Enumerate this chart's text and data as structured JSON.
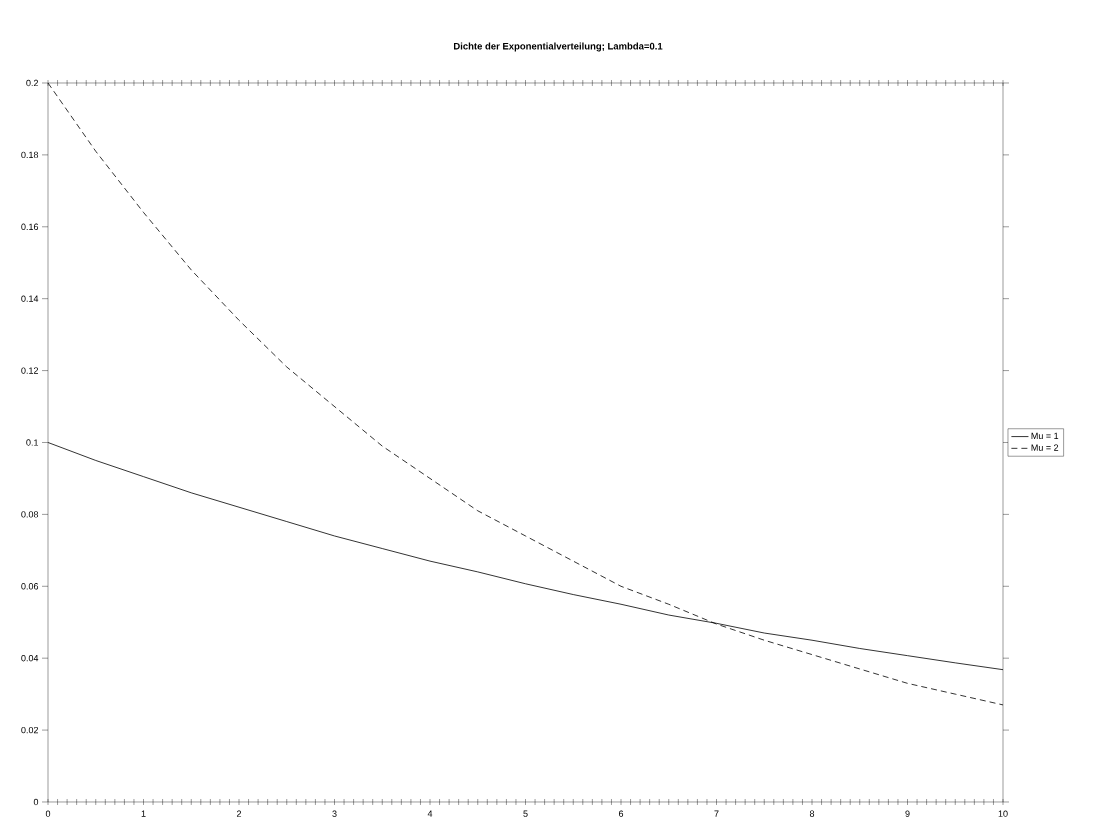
{
  "chart_data": {
    "type": "line",
    "title": "Dichte der Exponentialverteilung; Lambda=0.1",
    "x": [
      0,
      0.5,
      1,
      1.5,
      2,
      2.5,
      3,
      3.5,
      4,
      4.5,
      5,
      5.5,
      6,
      6.5,
      7,
      7.5,
      8,
      8.5,
      9,
      9.5,
      10
    ],
    "series": [
      {
        "name": "Mu = 1",
        "color": "#000000",
        "line_style": "solid",
        "values": [
          0.1,
          0.095,
          0.0905,
          0.086,
          0.082,
          0.078,
          0.074,
          0.0705,
          0.067,
          0.064,
          0.0607,
          0.0577,
          0.055,
          0.052,
          0.0497,
          0.047,
          0.045,
          0.0427,
          0.0407,
          0.0387,
          0.0368
        ]
      },
      {
        "name": "Mu = 2",
        "color": "#000000",
        "line_style": "dashed",
        "values": [
          0.2,
          0.181,
          0.164,
          0.148,
          0.134,
          0.121,
          0.11,
          0.099,
          0.09,
          0.081,
          0.074,
          0.067,
          0.06,
          0.055,
          0.0495,
          0.045,
          0.041,
          0.037,
          0.033,
          0.03,
          0.027
        ]
      }
    ],
    "xlim": [
      0,
      10
    ],
    "ylim": [
      0,
      0.2
    ],
    "xticks": [
      0,
      {
        "value": 0.1,
        "label": null
      },
      {
        "value": 0.2,
        "label": null
      },
      {
        "value": 0.3,
        "label": null
      },
      {
        "value": 0.4,
        "label": null
      },
      {
        "value": 0.5,
        "label": null
      },
      {
        "value": 0.6,
        "label": null
      },
      {
        "value": 0.7,
        "label": null
      },
      {
        "value": 0.8,
        "label": null
      },
      {
        "value": 0.9,
        "label": null
      },
      1,
      {
        "value": 1.1,
        "label": null
      },
      {
        "value": 1.2,
        "label": null
      },
      {
        "value": 1.3,
        "label": null
      },
      {
        "value": 1.4,
        "label": null
      },
      {
        "value": 1.5,
        "label": null
      },
      {
        "value": 1.6,
        "label": null
      },
      {
        "value": 1.7,
        "label": null
      },
      {
        "value": 1.8,
        "label": null
      },
      {
        "value": 1.9,
        "label": null
      },
      2,
      {
        "value": 2.1,
        "label": null
      },
      {
        "value": 2.2,
        "label": null
      },
      {
        "value": 2.3,
        "label": null
      },
      {
        "value": 2.4,
        "label": null
      },
      {
        "value": 2.5,
        "label": null
      },
      {
        "value": 2.6,
        "label": null
      },
      {
        "value": 2.7,
        "label": null
      },
      {
        "value": 2.8,
        "label": null
      },
      {
        "value": 2.9,
        "label": null
      },
      3,
      {
        "value": 3.1,
        "label": null
      },
      {
        "value": 3.2,
        "label": null
      },
      {
        "value": 3.3,
        "label": null
      },
      {
        "value": 3.4,
        "label": null
      },
      {
        "value": 3.5,
        "label": null
      },
      {
        "value": 3.6,
        "label": null
      },
      {
        "value": 3.7,
        "label": null
      },
      {
        "value": 3.8,
        "label": null
      },
      {
        "value": 3.9,
        "label": null
      },
      4,
      {
        "value": 4.1,
        "label": null
      },
      {
        "value": 4.2,
        "label": null
      },
      {
        "value": 4.3,
        "label": null
      },
      {
        "value": 4.4,
        "label": null
      },
      {
        "value": 4.5,
        "label": null
      },
      {
        "value": 4.6,
        "label": null
      },
      {
        "value": 4.7,
        "label": null
      },
      {
        "value": 4.8,
        "label": null
      },
      {
        "value": 4.9,
        "label": null
      },
      5,
      {
        "value": 5.1,
        "label": null
      },
      {
        "value": 5.2,
        "label": null
      },
      {
        "value": 5.3,
        "label": null
      },
      {
        "value": 5.4,
        "label": null
      },
      {
        "value": 5.5,
        "label": null
      },
      {
        "value": 5.6,
        "label": null
      },
      {
        "value": 5.7,
        "label": null
      },
      {
        "value": 5.8,
        "label": null
      },
      {
        "value": 5.9,
        "label": null
      },
      6,
      {
        "value": 6.1,
        "label": null
      },
      {
        "value": 6.2,
        "label": null
      },
      {
        "value": 6.3,
        "label": null
      },
      {
        "value": 6.4,
        "label": null
      },
      {
        "value": 6.5,
        "label": null
      },
      {
        "value": 6.6,
        "label": null
      },
      {
        "value": 6.7,
        "label": null
      },
      {
        "value": 6.8,
        "label": null
      },
      {
        "value": 6.9,
        "label": null
      },
      7,
      {
        "value": 7.1,
        "label": null
      },
      {
        "value": 7.2,
        "label": null
      },
      {
        "value": 7.3,
        "label": null
      },
      {
        "value": 7.4,
        "label": null
      },
      {
        "value": 7.5,
        "label": null
      },
      {
        "value": 7.6,
        "label": null
      },
      {
        "value": 7.7,
        "label": null
      },
      {
        "value": 7.8,
        "label": null
      },
      {
        "value": 7.9,
        "label": null
      },
      8,
      {
        "value": 8.1,
        "label": null
      },
      {
        "value": 8.2,
        "label": null
      },
      {
        "value": 8.3,
        "label": null
      },
      {
        "value": 8.4,
        "label": null
      },
      {
        "value": 8.5,
        "label": null
      },
      {
        "value": 8.6,
        "label": null
      },
      {
        "value": 8.7,
        "label": null
      },
      {
        "value": 8.8,
        "label": null
      },
      {
        "value": 8.9,
        "label": null
      },
      9,
      {
        "value": 9.1,
        "label": null
      },
      {
        "value": 9.2,
        "label": null
      },
      {
        "value": 9.3,
        "label": null
      },
      {
        "value": 9.4,
        "label": null
      },
      {
        "value": 9.5,
        "label": null
      },
      {
        "value": 9.6,
        "label": null
      },
      {
        "value": 9.7,
        "label": null
      },
      {
        "value": 9.8,
        "label": null
      },
      {
        "value": 9.9,
        "label": null
      },
      10
    ],
    "yticks": [
      0,
      0.02,
      0.04,
      0.06,
      0.08,
      0.1,
      0.12,
      0.14,
      0.16,
      0.18,
      0.2
    ],
    "grid": false,
    "legend": "right",
    "marker": "none"
  }
}
